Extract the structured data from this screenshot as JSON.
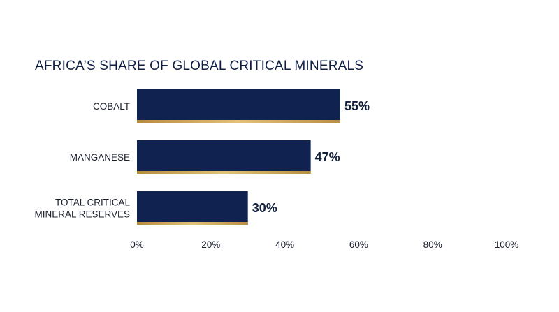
{
  "chart_data": {
    "type": "bar",
    "orientation": "horizontal",
    "title": "AFRICA’S SHARE OF GLOBAL CRITICAL MINERALS",
    "categories": [
      [
        "COBALT"
      ],
      [
        "MANGANESE"
      ],
      [
        "TOTAL CRITICAL",
        "MINERAL RESERVES"
      ]
    ],
    "values": [
      55,
      47,
      30
    ],
    "value_labels": [
      "55%",
      "47%",
      "30%"
    ],
    "x_ticks": [
      "0%",
      "20%",
      "40%",
      "60%",
      "80%",
      "100%"
    ],
    "xlim": [
      0,
      100
    ],
    "grid": false,
    "colors": {
      "bar": "#0f2250",
      "accent": "#c9a256",
      "text": "#14213d"
    }
  }
}
